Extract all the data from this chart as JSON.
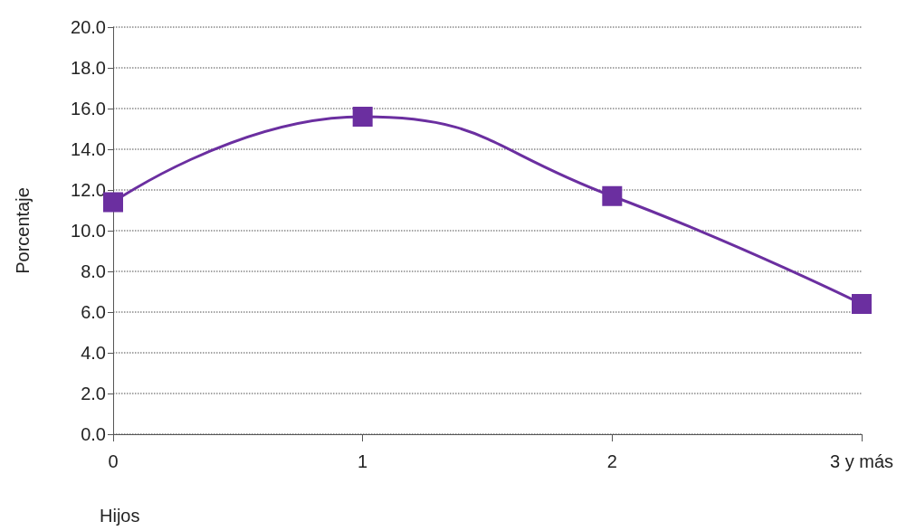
{
  "chart_data": {
    "type": "line",
    "xlabel": "Hijos",
    "ylabel": "Porcentaje",
    "categories": [
      "0",
      "1",
      "2",
      "3 y más"
    ],
    "series": [
      {
        "color": "#6b2fa0",
        "values": [
          11.4,
          15.6,
          11.7,
          6.4
        ]
      }
    ],
    "ylim": [
      0,
      20
    ],
    "yticks": [
      {
        "value": 0,
        "label": "0.0"
      },
      {
        "value": 2,
        "label": "2.0"
      },
      {
        "value": 4,
        "label": "4.0"
      },
      {
        "value": 6,
        "label": "6.0"
      },
      {
        "value": 8,
        "label": "8.0"
      },
      {
        "value": 10,
        "label": "10.0"
      },
      {
        "value": 12,
        "label": "12.0"
      },
      {
        "value": 14,
        "label": "14.0"
      },
      {
        "value": 16,
        "label": "16.0"
      },
      {
        "value": 18,
        "label": "18.0"
      },
      {
        "value": 20,
        "label": "20.0"
      }
    ],
    "grid": "y",
    "marker": "square",
    "line_style": "solid"
  }
}
